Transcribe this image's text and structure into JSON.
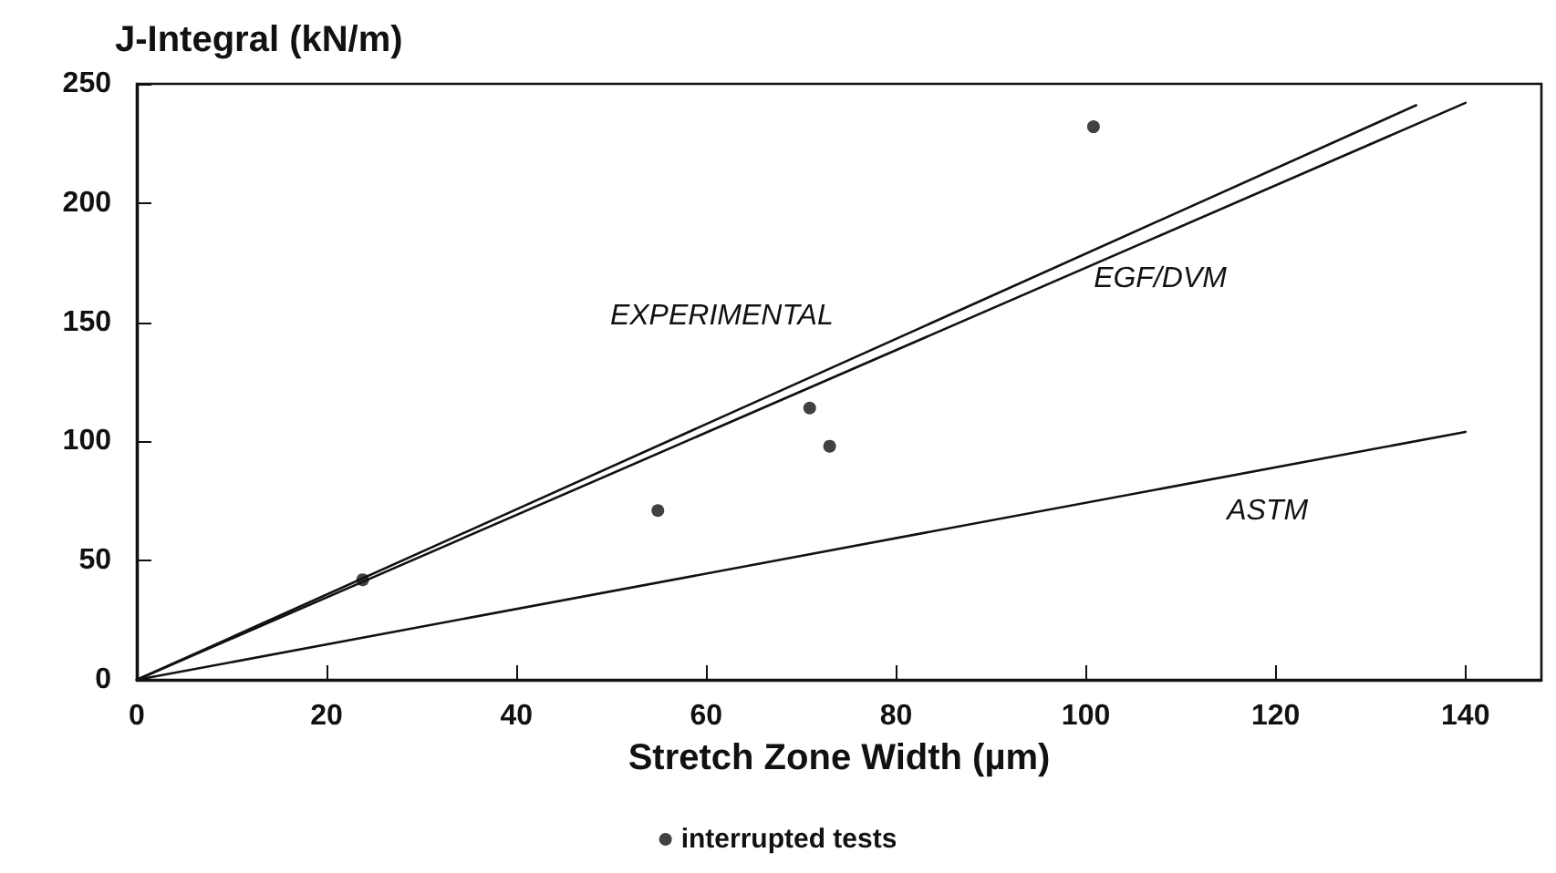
{
  "chart_data": {
    "type": "line",
    "xlabel": "Stretch Zone Width (µm)",
    "ylabel": "J-Integral (kN/m)",
    "xlim": [
      0,
      148
    ],
    "ylim": [
      0,
      250
    ],
    "xticks": [
      0,
      20,
      40,
      60,
      80,
      100,
      120,
      140
    ],
    "yticks": [
      0,
      50,
      100,
      150,
      200,
      250
    ],
    "grid": false,
    "legend": "bottom",
    "line_style": "solid",
    "marker": "none",
    "series": [
      {
        "name": "EXPERIMENTAL",
        "color": "#111111",
        "x": [
          0,
          134.8
        ],
        "values": [
          0,
          241
        ]
      },
      {
        "name": "EGF/DVM",
        "color": "#111111",
        "x": [
          0,
          140
        ],
        "values": [
          0,
          242
        ]
      },
      {
        "name": "ASTM",
        "color": "#111111",
        "x": [
          0,
          140
        ],
        "values": [
          0,
          104
        ]
      },
      {
        "name": "interrupted tests",
        "type": "scatter",
        "marker": "circle",
        "color": "#111111",
        "x": [
          23.8,
          54.9,
          70.9,
          73.0,
          100.8
        ],
        "values": [
          42,
          71,
          114,
          98,
          232
        ]
      }
    ]
  }
}
